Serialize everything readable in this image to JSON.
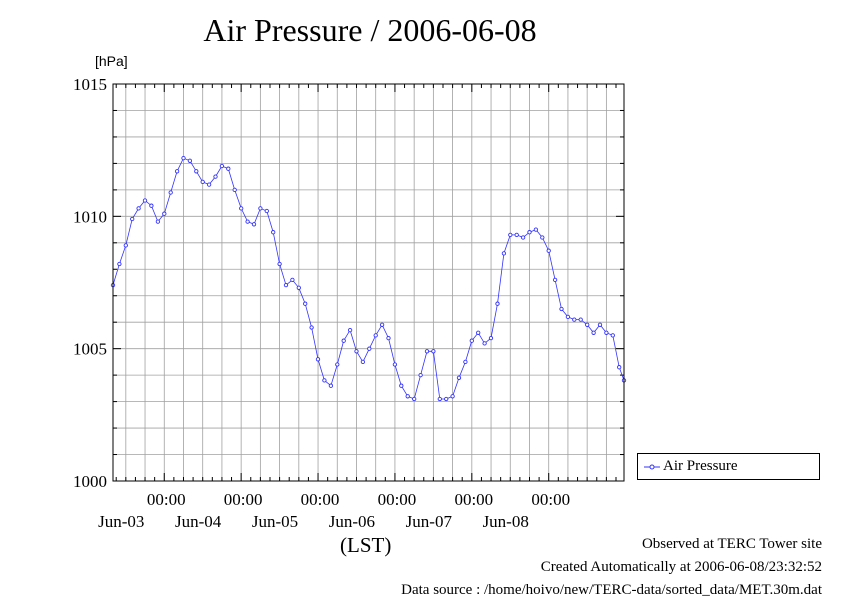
{
  "chart_data": {
    "type": "line",
    "title": "Air Pressure / 2006-06-08",
    "ylabel": "[hPa]",
    "xlabel": "(LST)",
    "ylim": [
      1000,
      1015
    ],
    "yticks": [
      "1000",
      "1005",
      "1010",
      "1015"
    ],
    "xlim": [
      "2006-06-02 08:00",
      "2006-06-08 23:30"
    ],
    "xticks": [
      {
        "x": "2006-06-03 00:00",
        "time": "00:00",
        "date": "Jun-03"
      },
      {
        "x": "2006-06-04 00:00",
        "time": "00:00",
        "date": "Jun-04"
      },
      {
        "x": "2006-06-05 00:00",
        "time": "00:00",
        "date": "Jun-05"
      },
      {
        "x": "2006-06-06 00:00",
        "time": "00:00",
        "date": "Jun-06"
      },
      {
        "x": "2006-06-07 00:00",
        "time": "00:00",
        "date": "Jun-07"
      },
      {
        "x": "2006-06-08 00:00",
        "time": "00:00",
        "date": "Jun-08"
      }
    ],
    "grid": true,
    "legend_position": "lower-right outside",
    "series": [
      {
        "name": "Air Pressure",
        "color": "#3333ff",
        "marker": "circle",
        "points": [
          [
            "2006-06-02 08:00",
            1007.4
          ],
          [
            "2006-06-02 10:00",
            1008.2
          ],
          [
            "2006-06-02 12:00",
            1008.9
          ],
          [
            "2006-06-02 14:00",
            1009.9
          ],
          [
            "2006-06-02 16:00",
            1010.3
          ],
          [
            "2006-06-02 18:00",
            1010.6
          ],
          [
            "2006-06-02 20:00",
            1010.4
          ],
          [
            "2006-06-02 22:00",
            1009.8
          ],
          [
            "2006-06-03 00:00",
            1010.1
          ],
          [
            "2006-06-03 02:00",
            1010.9
          ],
          [
            "2006-06-03 04:00",
            1011.7
          ],
          [
            "2006-06-03 06:00",
            1012.2
          ],
          [
            "2006-06-03 08:00",
            1012.1
          ],
          [
            "2006-06-03 10:00",
            1011.7
          ],
          [
            "2006-06-03 12:00",
            1011.3
          ],
          [
            "2006-06-03 14:00",
            1011.2
          ],
          [
            "2006-06-03 16:00",
            1011.5
          ],
          [
            "2006-06-03 18:00",
            1011.9
          ],
          [
            "2006-06-03 20:00",
            1011.8
          ],
          [
            "2006-06-03 22:00",
            1011.0
          ],
          [
            "2006-06-04 00:00",
            1010.3
          ],
          [
            "2006-06-04 02:00",
            1009.8
          ],
          [
            "2006-06-04 04:00",
            1009.7
          ],
          [
            "2006-06-04 06:00",
            1010.3
          ],
          [
            "2006-06-04 08:00",
            1010.2
          ],
          [
            "2006-06-04 10:00",
            1009.4
          ],
          [
            "2006-06-04 12:00",
            1008.2
          ],
          [
            "2006-06-04 14:00",
            1007.4
          ],
          [
            "2006-06-04 16:00",
            1007.6
          ],
          [
            "2006-06-04 18:00",
            1007.3
          ],
          [
            "2006-06-04 20:00",
            1006.7
          ],
          [
            "2006-06-04 22:00",
            1005.8
          ],
          [
            "2006-06-05 00:00",
            1004.6
          ],
          [
            "2006-06-05 02:00",
            1003.8
          ],
          [
            "2006-06-05 04:00",
            1003.6
          ],
          [
            "2006-06-05 06:00",
            1004.4
          ],
          [
            "2006-06-05 08:00",
            1005.3
          ],
          [
            "2006-06-05 10:00",
            1005.7
          ],
          [
            "2006-06-05 12:00",
            1004.9
          ],
          [
            "2006-06-05 14:00",
            1004.5
          ],
          [
            "2006-06-05 16:00",
            1005.0
          ],
          [
            "2006-06-05 18:00",
            1005.5
          ],
          [
            "2006-06-05 20:00",
            1005.9
          ],
          [
            "2006-06-05 22:00",
            1005.4
          ],
          [
            "2006-06-06 00:00",
            1004.4
          ],
          [
            "2006-06-06 02:00",
            1003.6
          ],
          [
            "2006-06-06 04:00",
            1003.2
          ],
          [
            "2006-06-06 06:00",
            1003.1
          ],
          [
            "2006-06-06 08:00",
            1004.0
          ],
          [
            "2006-06-06 10:00",
            1004.9
          ],
          [
            "2006-06-06 12:00",
            1004.9
          ],
          [
            "2006-06-06 14:00",
            1003.1
          ],
          [
            "2006-06-06 16:00",
            1003.1
          ],
          [
            "2006-06-06 18:00",
            1003.2
          ],
          [
            "2006-06-06 20:00",
            1003.9
          ],
          [
            "2006-06-06 22:00",
            1004.5
          ],
          [
            "2006-06-07 00:00",
            1005.3
          ],
          [
            "2006-06-07 02:00",
            1005.6
          ],
          [
            "2006-06-07 04:00",
            1005.2
          ],
          [
            "2006-06-07 06:00",
            1005.4
          ],
          [
            "2006-06-07 08:00",
            1006.7
          ],
          [
            "2006-06-07 10:00",
            1008.6
          ],
          [
            "2006-06-07 12:00",
            1009.3
          ],
          [
            "2006-06-07 14:00",
            1009.3
          ],
          [
            "2006-06-07 16:00",
            1009.2
          ],
          [
            "2006-06-07 18:00",
            1009.4
          ],
          [
            "2006-06-07 20:00",
            1009.5
          ],
          [
            "2006-06-07 22:00",
            1009.2
          ],
          [
            "2006-06-08 00:00",
            1008.7
          ],
          [
            "2006-06-08 02:00",
            1007.6
          ],
          [
            "2006-06-08 04:00",
            1006.5
          ],
          [
            "2006-06-08 06:00",
            1006.2
          ],
          [
            "2006-06-08 08:00",
            1006.1
          ],
          [
            "2006-06-08 10:00",
            1006.1
          ],
          [
            "2006-06-08 12:00",
            1005.9
          ],
          [
            "2006-06-08 14:00",
            1005.6
          ],
          [
            "2006-06-08 16:00",
            1005.9
          ],
          [
            "2006-06-08 18:00",
            1005.6
          ],
          [
            "2006-06-08 20:00",
            1005.5
          ],
          [
            "2006-06-08 22:00",
            1004.3
          ],
          [
            "2006-06-08 23:30",
            1003.8
          ]
        ]
      }
    ]
  },
  "legend": {
    "label": "Air Pressure"
  },
  "footer": {
    "line1": "Observed at TERC Tower site",
    "line2": "Created Automatically at 2006-06-08/23:32:52",
    "line3": "Data source : /home/hoivo/new/TERC-data/sorted_data/MET.30m.dat"
  }
}
